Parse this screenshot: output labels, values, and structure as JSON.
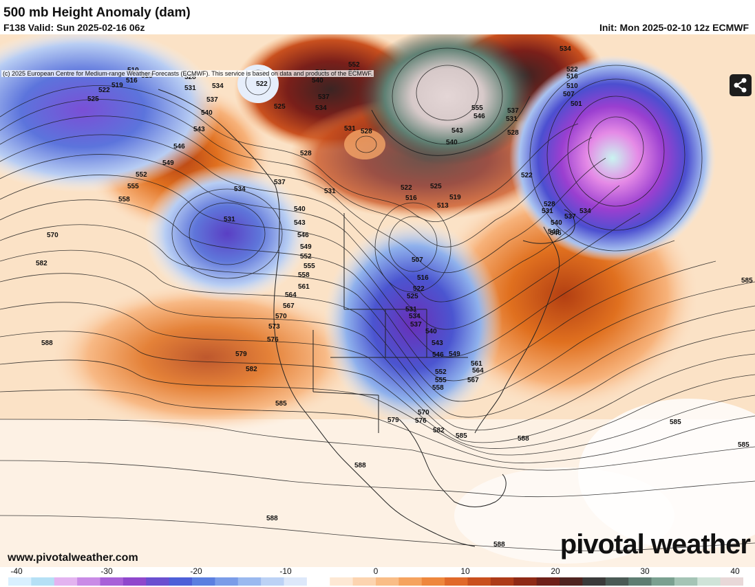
{
  "header": {
    "title": "500 mb Height Anomaly (dam)",
    "forecast_valid": "F138 Valid: Sun 2025-02-16 06z",
    "init": "Init: Mon 2025-02-10 12z ECMWF"
  },
  "map": {
    "copyright": "(c) 2025 European Centre for Medium-range Weather Forecasts (ECMWF). This service is based on data and products of the ECMWF.",
    "contour_labels": [
      "510",
      "513",
      "516",
      "519",
      "522",
      "525",
      "528",
      "531",
      "534",
      "537",
      "540",
      "543",
      "546",
      "549",
      "552",
      "555",
      "558",
      "561",
      "564",
      "567",
      "570",
      "573",
      "576",
      "579",
      "582",
      "585",
      "588",
      "507",
      "501"
    ]
  },
  "share_button": {
    "icon": "share-icon"
  },
  "footer": {
    "website": "www.pivotalweather.com",
    "logo": "pivotal weather"
  },
  "colorbar": {
    "ticks": [
      "-40",
      "-30",
      "-20",
      "-10",
      "0",
      "10",
      "20",
      "30",
      "40"
    ],
    "colors": [
      "#d9f0ff",
      "#b5e0f5",
      "#e3b3f0",
      "#c98be6",
      "#a860d8",
      "#8f47cc",
      "#6a4fd0",
      "#4d5fd8",
      "#5b7fe0",
      "#7a9ce8",
      "#9ab9ef",
      "#bcd2f5",
      "#dde8fa",
      "#ffffff",
      "#fde8d4",
      "#fcd4b0",
      "#f9bd87",
      "#f5a35f",
      "#ee873d",
      "#e0692a",
      "#c9501e",
      "#ad3b18",
      "#8e2a16",
      "#6e2019",
      "#4f2420",
      "#3a3a3a",
      "#4a5a55",
      "#5e7d72",
      "#7aa090",
      "#a4c4b5",
      "#cfe3d8",
      "#e8d8d8"
    ]
  }
}
